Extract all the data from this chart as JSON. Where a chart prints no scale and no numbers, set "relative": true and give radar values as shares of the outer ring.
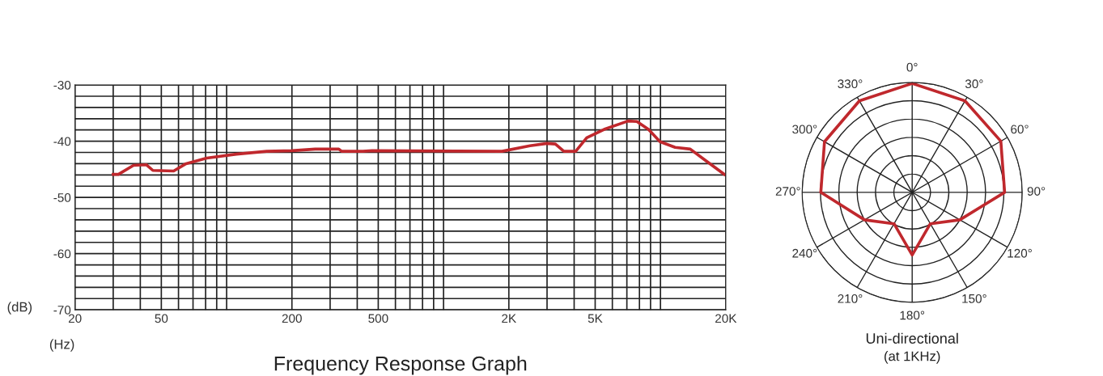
{
  "chart_data": [
    {
      "type": "line",
      "title": "Frequency Response Graph",
      "xlabel": "(Hz)",
      "ylabel": "(dB)",
      "log": "x",
      "grid": true,
      "marker": "none",
      "line_style": "solid",
      "x": [
        30,
        31.7,
        37.2,
        42.7,
        45.7,
        57,
        65,
        81,
        111,
        153,
        200,
        256,
        290,
        329,
        339,
        425,
        468,
        1859,
        2504,
        2996,
        3278,
        3586,
        4066,
        4571,
        5495,
        7090,
        7786,
        8803,
        9953,
        11686,
        13716,
        15956,
        19700
      ],
      "series": [
        {
          "color": "#c0282d",
          "values": [
            -45.9,
            -45.9,
            -44.3,
            -44.2,
            -45.2,
            -45.3,
            -44.0,
            -43.0,
            -42.3,
            -41.8,
            -41.7,
            -41.4,
            -41.4,
            -41.4,
            -41.8,
            -41.8,
            -41.7,
            -41.8,
            -40.8,
            -40.4,
            -40.5,
            -41.8,
            -41.8,
            -39.4,
            -37.9,
            -36.4,
            -36.5,
            -37.9,
            -40.1,
            -41.1,
            -41.4,
            -43.3,
            -45.9
          ]
        }
      ],
      "xlim": [
        20,
        20000
      ],
      "xticks": [
        20,
        {
          "value": 30,
          "label": null
        },
        {
          "value": 40,
          "label": null
        },
        50,
        {
          "value": 60,
          "label": null
        },
        {
          "value": 70,
          "label": null
        },
        {
          "value": 80,
          "label": null
        },
        {
          "value": 90,
          "label": null
        },
        {
          "value": 100,
          "label": null
        },
        200,
        {
          "value": 300,
          "label": null
        },
        {
          "value": 400,
          "label": null
        },
        500,
        {
          "value": 600,
          "label": null
        },
        {
          "value": 700,
          "label": null
        },
        {
          "value": 800,
          "label": null
        },
        {
          "value": 900,
          "label": null
        },
        {
          "value": 1000,
          "label": null
        },
        {
          "value": 2000,
          "label": "2K"
        },
        {
          "value": 3000,
          "label": null
        },
        {
          "value": 4000,
          "label": null
        },
        {
          "value": 5000,
          "label": "5K"
        },
        {
          "value": 6000,
          "label": null
        },
        {
          "value": 7000,
          "label": null
        },
        {
          "value": 8000,
          "label": null
        },
        {
          "value": 9000,
          "label": null
        },
        {
          "value": 10000,
          "label": null
        },
        {
          "value": 20000,
          "label": "20K"
        }
      ],
      "ylim": [
        -70,
        -30
      ],
      "yticks": [
        -70,
        {
          "value": -68,
          "label": null
        },
        {
          "value": -66,
          "label": null
        },
        {
          "value": -64,
          "label": null
        },
        {
          "value": -62,
          "label": null
        },
        -60,
        {
          "value": -58,
          "label": null
        },
        {
          "value": -56,
          "label": null
        },
        {
          "value": -54,
          "label": null
        },
        {
          "value": -52,
          "label": null
        },
        -50,
        {
          "value": -48,
          "label": null
        },
        {
          "value": -46,
          "label": null
        },
        {
          "value": -44,
          "label": null
        },
        {
          "value": -42,
          "label": null
        },
        -40,
        {
          "value": -38,
          "label": null
        },
        {
          "value": -36,
          "label": null
        },
        {
          "value": -34,
          "label": null
        },
        {
          "value": -32,
          "label": null
        },
        -30
      ]
    },
    {
      "type": "radar",
      "title": "Uni-directional",
      "subtitle": "(at 1KHz)",
      "relative": true,
      "grid": true,
      "categories": [
        "0°",
        "30°",
        "60°",
        "90°",
        "120°",
        "150°",
        "180°",
        "210°",
        "240°",
        "270°",
        "300°",
        "330°"
      ],
      "series": [
        {
          "color": "#c0282d",
          "values": [
            0.99,
            0.96,
            0.93,
            0.84,
            0.5,
            0.33,
            0.57,
            0.33,
            0.5,
            0.83,
            0.92,
            0.96
          ]
        }
      ]
    }
  ]
}
